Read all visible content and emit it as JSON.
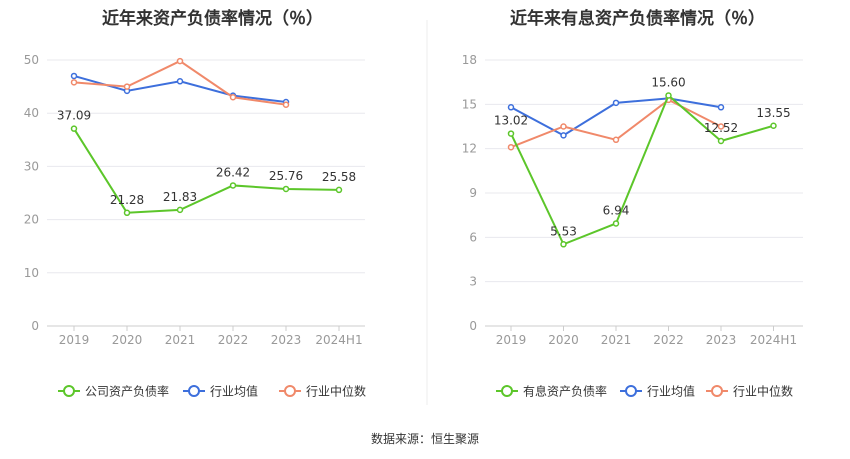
{
  "source": "数据来源：恒生聚源",
  "colors": {
    "company": "#5cc62a",
    "industry_avg": "#3d6fdc",
    "industry_median": "#f0896a",
    "grid": "#e8e8ee",
    "axis": "#999999",
    "label": "#333333"
  },
  "chart_data": [
    {
      "type": "line",
      "title": "近年来资产负债率情况（％）",
      "categories": [
        "2019",
        "2020",
        "2021",
        "2022",
        "2023",
        "2024H1"
      ],
      "ylim": [
        0,
        50
      ],
      "yticks": [
        0,
        10,
        20,
        30,
        40,
        50
      ],
      "series": [
        {
          "name": "公司资产负债率",
          "key": "company",
          "values": [
            37.09,
            21.28,
            21.83,
            26.42,
            25.76,
            25.58
          ],
          "labels": [
            "37.09",
            "21.28",
            "21.83",
            "26.42",
            "25.76",
            "25.58"
          ]
        },
        {
          "name": "行业均值",
          "key": "industry_avg",
          "values": [
            47.0,
            44.2,
            46.0,
            43.3,
            42.1,
            null
          ]
        },
        {
          "name": "行业中位数",
          "key": "industry_median",
          "values": [
            45.8,
            45.0,
            49.8,
            43.0,
            41.6,
            null
          ]
        }
      ]
    },
    {
      "type": "line",
      "title": "近年来有息资产负债率情况（％）",
      "categories": [
        "2019",
        "2020",
        "2021",
        "2022",
        "2023",
        "2024H1"
      ],
      "ylim": [
        0,
        18
      ],
      "yticks": [
        0,
        3,
        6,
        9,
        12,
        15,
        18
      ],
      "series": [
        {
          "name": "有息资产负债率",
          "key": "company",
          "values": [
            13.02,
            5.53,
            6.94,
            15.6,
            12.52,
            13.55
          ],
          "labels": [
            "13.02",
            "5.53",
            "6.94",
            "15.60",
            "12.52",
            "13.55"
          ]
        },
        {
          "name": "行业均值",
          "key": "industry_avg",
          "values": [
            14.8,
            12.9,
            15.1,
            15.4,
            14.8,
            null
          ]
        },
        {
          "name": "行业中位数",
          "key": "industry_median",
          "values": [
            12.1,
            13.5,
            12.6,
            15.3,
            13.5,
            null
          ]
        }
      ]
    }
  ]
}
